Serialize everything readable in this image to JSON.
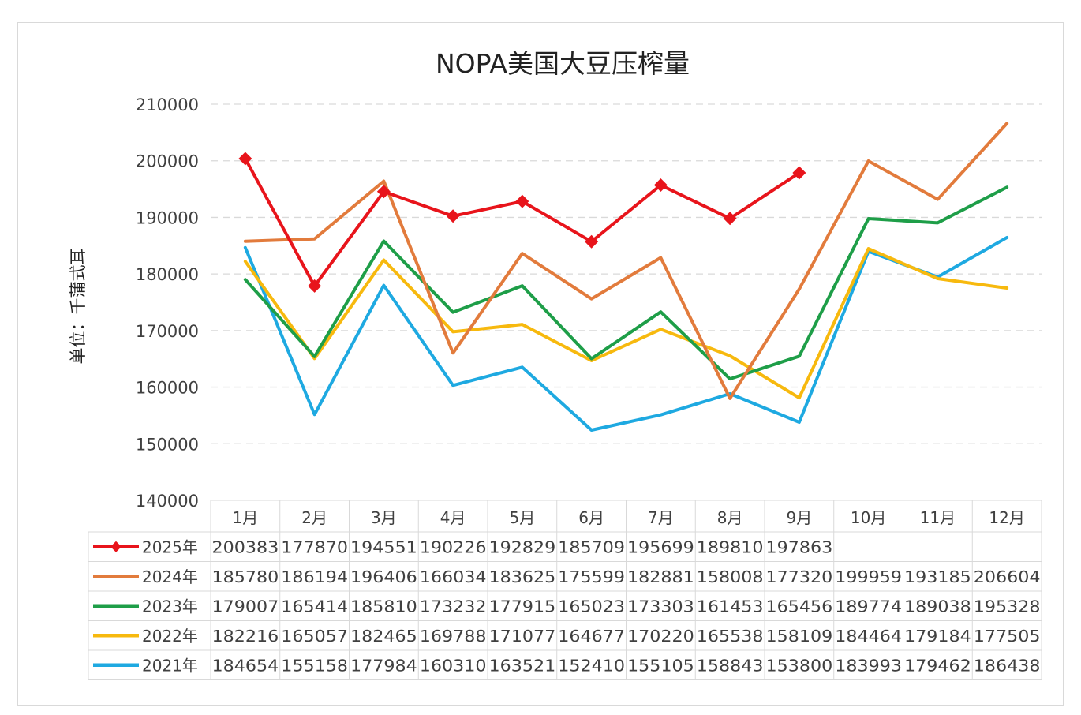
{
  "chart_data": {
    "type": "line",
    "title": "NOPA美国大豆压榨量",
    "ylabel": "单位：千蒲式耳",
    "xlabel": "",
    "ylim": [
      140000,
      210000
    ],
    "yticks": [
      "210000",
      "200000",
      "190000",
      "180000",
      "170000",
      "160000",
      "150000",
      "140000"
    ],
    "grid": true,
    "legend": "bottom data table",
    "categories": [
      "1月",
      "2月",
      "3月",
      "4月",
      "5月",
      "6月",
      "7月",
      "8月",
      "9月",
      "10月",
      "11月",
      "12月"
    ],
    "series": [
      {
        "name": "2025年",
        "color": "#e8141b",
        "marker": "diamond",
        "values": [
          200383,
          177870,
          194551,
          190226,
          192829,
          185709,
          195699,
          189810,
          197863,
          null,
          null,
          null
        ],
        "labels": [
          "200383",
          "177870",
          "194551",
          "190226",
          "192829",
          "185709",
          "195699",
          "189810",
          "197863",
          "",
          "",
          ""
        ]
      },
      {
        "name": "2024年",
        "color": "#e27b3c",
        "marker": "none",
        "values": [
          185780,
          186194,
          196406,
          166034,
          183625,
          175599,
          182881,
          158008,
          177320,
          199959,
          193185,
          206604
        ],
        "labels": [
          "185780",
          "186194",
          "196406",
          "166034",
          "183625",
          "175599",
          "182881",
          "158008",
          "177320",
          "199959",
          "193185",
          "206604"
        ]
      },
      {
        "name": "2023年",
        "color": "#1e9e48",
        "marker": "none",
        "values": [
          179007,
          165414,
          185810,
          173232,
          177915,
          165023,
          173303,
          161453,
          165456,
          189774,
          189038,
          195328
        ],
        "labels": [
          "179007",
          "165414",
          "185810",
          "173232",
          "177915",
          "165023",
          "173303",
          "161453",
          "165456",
          "189774",
          "189038",
          "195328"
        ]
      },
      {
        "name": "2022年",
        "color": "#f7b90e",
        "marker": "none",
        "values": [
          182216,
          165057,
          182465,
          169788,
          171077,
          164677,
          170220,
          165538,
          158109,
          184464,
          179184,
          177505
        ],
        "labels": [
          "182216",
          "165057",
          "182465",
          "169788",
          "171077",
          "164677",
          "170220",
          "165538",
          "158109",
          "184464",
          "179184",
          "177505"
        ]
      },
      {
        "name": "2021年",
        "color": "#1ea9e1",
        "marker": "none",
        "values": [
          184654,
          155158,
          177984,
          160310,
          163521,
          152410,
          155105,
          158843,
          153800,
          183993,
          179462,
          186438
        ],
        "labels": [
          "184654",
          "155158",
          "177984",
          "160310",
          "163521",
          "152410",
          "155105",
          "158843",
          "153800",
          "183993",
          "179462",
          "186438"
        ]
      }
    ]
  }
}
